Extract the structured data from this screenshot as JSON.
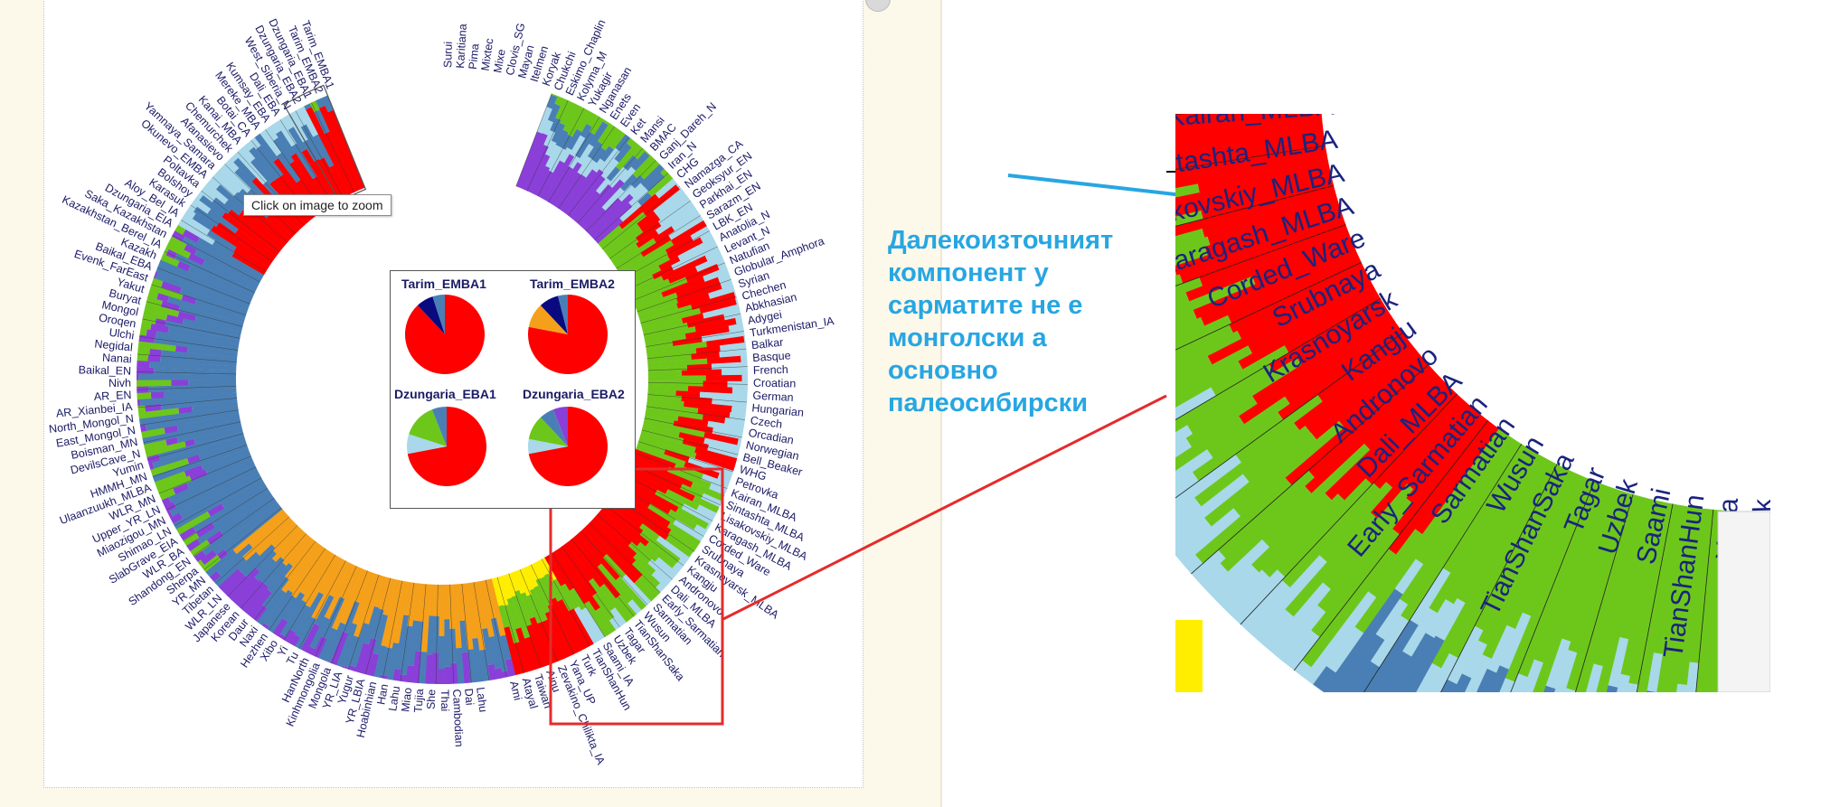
{
  "image": {
    "tooltip": "Click on image to zoom",
    "annotation": "Далекоизточният компонент у сарматите не е монголски а основно палеосибирски"
  },
  "palette": {
    "red": "#ff0000",
    "steel": "#4a7fb5",
    "green": "#6dc71b",
    "orange": "#f5a01a",
    "purple": "#8a3fd8",
    "lightblue": "#a8d8ea",
    "navy": "#0a0a80",
    "yellow": "#ffee00",
    "label": "#1a1a66",
    "highlight_red": "#e52b2b",
    "highlight_blue": "#27a6e2"
  },
  "inset": {
    "pies": [
      {
        "label": "Tarim_EMBA1",
        "slices": [
          {
            "color": "red",
            "value": 0.88
          },
          {
            "color": "navy",
            "value": 0.07
          },
          {
            "color": "steel",
            "value": 0.05
          }
        ]
      },
      {
        "label": "Tarim_EMBA2",
        "slices": [
          {
            "color": "red",
            "value": 0.78
          },
          {
            "color": "orange",
            "value": 0.1
          },
          {
            "color": "navy",
            "value": 0.08
          },
          {
            "color": "steel",
            "value": 0.04
          }
        ]
      },
      {
        "label": "Dzungaria_EBA1",
        "slices": [
          {
            "color": "red",
            "value": 0.72
          },
          {
            "color": "lightblue",
            "value": 0.08
          },
          {
            "color": "green",
            "value": 0.14
          },
          {
            "color": "steel",
            "value": 0.06
          }
        ]
      },
      {
        "label": "Dzungaria_EBA2",
        "slices": [
          {
            "color": "red",
            "value": 0.72
          },
          {
            "color": "lightblue",
            "value": 0.06
          },
          {
            "color": "green",
            "value": 0.1
          },
          {
            "color": "steel",
            "value": 0.06
          },
          {
            "color": "purple",
            "value": 0.06
          }
        ]
      }
    ]
  },
  "populations_left": [
    "Tarim_EMBA1",
    "Tarim_EMBA2",
    "Dzungaria_EBA1",
    "Dzungaria_EBA2",
    "West_Siberia_N",
    "Dali_EBA",
    "Kumsay_EBA",
    "Mereke_MBA",
    "Botai_CA",
    "Kanai_MBA",
    "Chemurchek",
    "Afanasievo",
    "Yamnaya_Samara",
    "Okunevo_EMBA",
    "Poltavka",
    "Bolshoy",
    "Karasuk",
    "Aloy_Bel_IA",
    "Dzungaria_EIA",
    "Saka_Kazakhstan",
    "Kazakhstan_Berel_IA",
    "Kazakh",
    "Baikal_EBA",
    "Evenk_FarEast",
    "Yakut",
    "Buryat",
    "Mongol",
    "Oroqen",
    "Ulchi",
    "Negidal",
    "Nanai",
    "Baikal_EN",
    "Nivh",
    "AR_EN",
    "AR_Xianbei_IA",
    "North_Mongol_N",
    "East_Mongol_N",
    "Boisman_MN",
    "DevilsCave_N",
    "Yumin",
    "HMMH_MN",
    "Ulaanzuukh_MLBA",
    "WLR_MN",
    "Upper_YR_LN",
    "Miaozigou_MN",
    "Shimao_LN",
    "SlabGrave_EIA",
    "WLR_BA",
    "Shandong_EN",
    "Sherpa",
    "YR_MN",
    "Tibetan",
    "WLR_LN",
    "Japanese",
    "Korean",
    "Daur",
    "Naxi",
    "Hezhen",
    "Xibo",
    "Yi",
    "Tu",
    "HanNorth",
    "Kinhmongolia",
    "Mongola",
    "YR_LIA",
    "Yugur",
    "YR_LBIA",
    "Hoabinhian",
    "Han",
    "Lahu",
    "Miao",
    "Tujia",
    "She",
    "Thai",
    "Cambodian",
    "Dai",
    "Lahu"
  ],
  "populations_right": [
    "Surui",
    "Karitiana",
    "Pima",
    "Mixtec",
    "Mixe",
    "Clovis_SG",
    "Mayan",
    "Itelmen",
    "Koryak",
    "Chukchi",
    "Eskimo_Chaplin",
    "Kolyma_M",
    "Yukagir",
    "Nganasan",
    "Enets",
    "Even",
    "Ket",
    "Mansi",
    "BMAC",
    "Ganj_Dareh_N",
    "Iran_N",
    "CHG",
    "Namazga_CA",
    "Geoksyur_EN",
    "Parkhai_EN",
    "Sarazm_EN",
    "LBK_EN",
    "Anatolia_N",
    "Levant_N",
    "Natufian",
    "Globular_Amphora",
    "Syrian",
    "Chechen",
    "Abkhasian",
    "Adygei",
    "Turkmenistan_IA",
    "Balkar",
    "Basque",
    "French",
    "Croatian",
    "German",
    "Hungarian",
    "Czech",
    "Orcadian",
    "Norwegian",
    "Bell_Beaker",
    "WHG",
    "Petrovka",
    "Kairan_MLBA",
    "Sintashta_MLBA",
    "Lisakovskiy_MLBA",
    "Karagash_MLBA",
    "Corded_Ware",
    "Srubnaya",
    "Krasnoyarsk_MLBA",
    "Kangju",
    "Andronovo",
    "Dali_MLBA",
    "Early_Sarmatian",
    "Sarmatian",
    "Wusun",
    "TianShanSaka",
    "Tagar",
    "Uzbek",
    "Saami_IA",
    "TianShanHun",
    "Turk",
    "Yana_UP",
    "Zevakino_Chilikta_IA",
    "Ainu",
    "Taiwan",
    "Atayal",
    "Ami"
  ],
  "zoom_labels": [
    "Kairan_MLBA",
    "Sintashta_MLBA",
    "Lisakovskiy_MLBA",
    "Karagash_MLBA",
    "Corded_Ware",
    "Srubnaya",
    "Krasnoyarsk",
    "Kangju",
    "Andronovo",
    "Dali_MLBA",
    "Early_Sarmatian",
    "Sarmatian",
    "Wusun",
    "TianShanSaka",
    "Tagar",
    "Uzbek",
    "Saami",
    "TianShanHun",
    "Yana",
    "Turk"
  ]
}
